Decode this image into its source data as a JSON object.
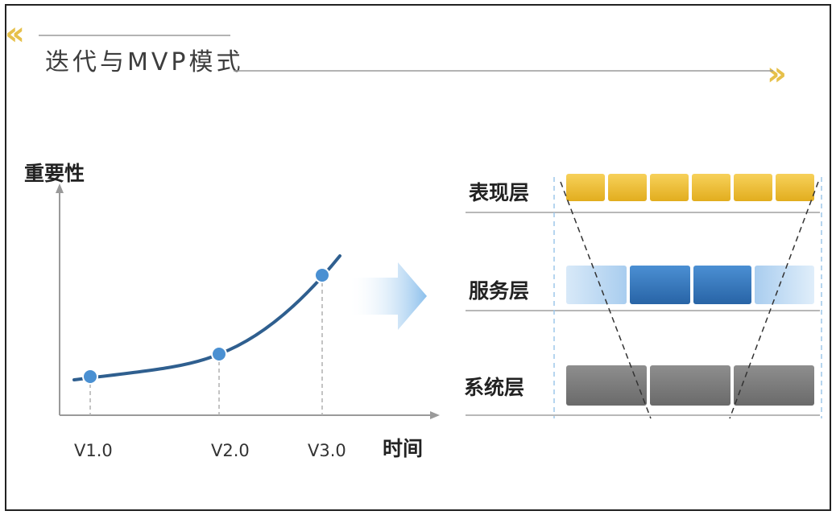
{
  "title": "迭代与MVP模式",
  "chart": {
    "ylabel": "重要性",
    "xlabel": "时间",
    "versions": [
      "V1.0",
      "V2.0",
      "V3.0"
    ]
  },
  "layers": [
    {
      "label": "表现层",
      "color": "#f2c33a",
      "blocks": 6
    },
    {
      "label": "服务层",
      "color": "#3c7fc4",
      "blocks": 4
    },
    {
      "label": "系统层",
      "color": "#7d7d7d",
      "blocks": 3
    }
  ],
  "colors": {
    "accent": "#e6c04a",
    "curve": "#2f5f8f",
    "point": "#4a90d2",
    "arrow": "#8cc0ec"
  }
}
